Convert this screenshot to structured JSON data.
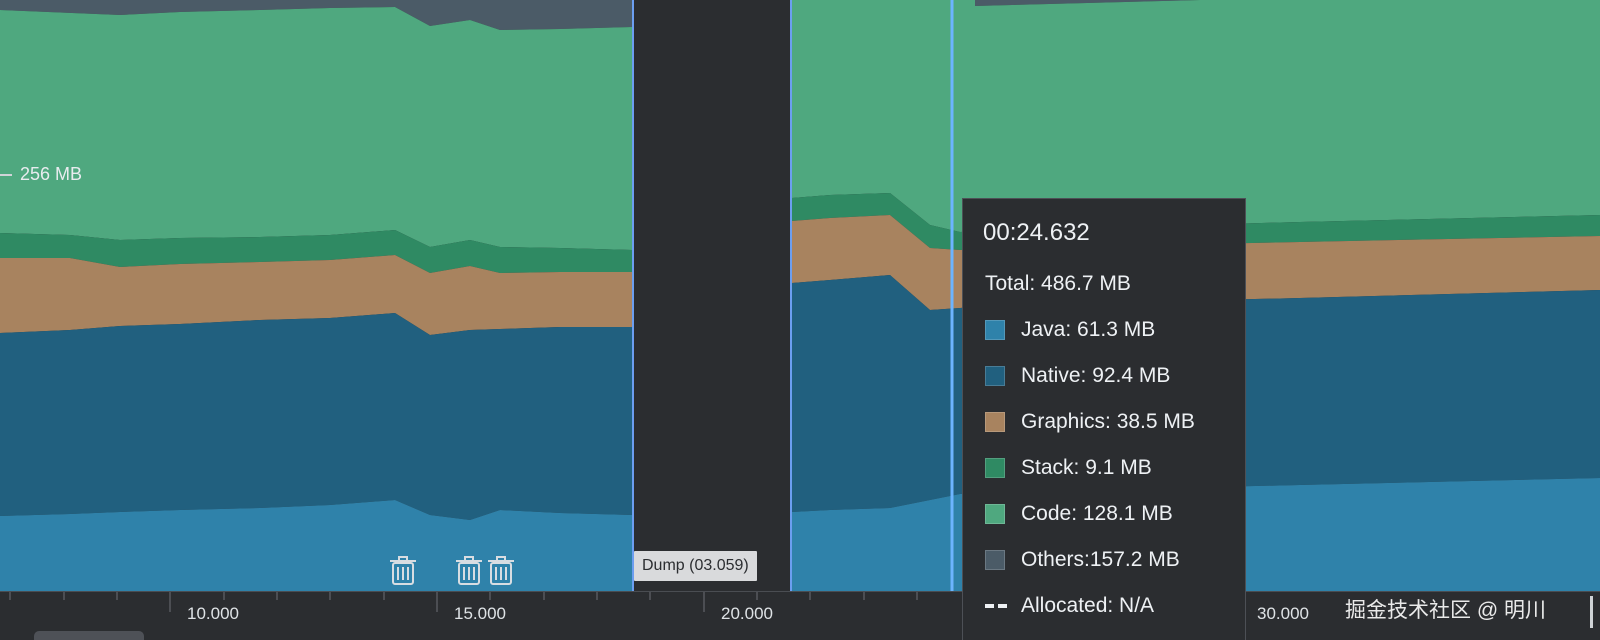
{
  "colors": {
    "java": "#2f82aa",
    "native": "#21607f",
    "graphics": "#a8835f",
    "stack": "#2f8a63",
    "code": "#4fa87f",
    "others": "#4b5b67",
    "background": "#2b2d30",
    "selection": "#6c9ef0"
  },
  "y_axis": {
    "label": "256 MB"
  },
  "x_axis": {
    "ticks": [
      "10.000",
      "15.000",
      "20.000",
      "30.000"
    ]
  },
  "dump": {
    "label": "Dump (03.059)"
  },
  "gc_icons": [
    "trash-icon",
    "trash-icon",
    "trash-icon"
  ],
  "tooltip": {
    "time": "00:24.632",
    "total": "Total: 486.7 MB",
    "rows": [
      {
        "label": "Java: 61.3 MB",
        "color": "#2f82aa"
      },
      {
        "label": "Native: 92.4 MB",
        "color": "#21607f"
      },
      {
        "label": "Graphics: 38.5 MB",
        "color": "#a8835f"
      },
      {
        "label": "Stack: 9.1 MB",
        "color": "#2f8a63"
      },
      {
        "label": "Code: 128.1 MB",
        "color": "#4fa87f"
      },
      {
        "label": "Others:157.2 MB",
        "color": "#4b5b67"
      }
    ],
    "allocated": "Allocated: N/A"
  },
  "watermark": "掘金技术社区 @ 明川"
}
